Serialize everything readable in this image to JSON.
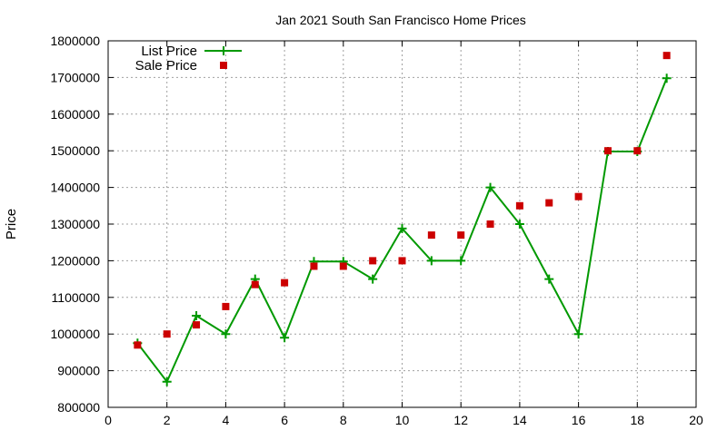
{
  "chart_data": {
    "type": "line",
    "title": "Jan 2021 South San Francisco Home Prices",
    "xlabel": "",
    "ylabel": "Price",
    "xlim": [
      0,
      20
    ],
    "ylim": [
      800000,
      1800000
    ],
    "x_ticks": [
      "0",
      "2",
      "4",
      "6",
      "8",
      "10",
      "12",
      "14",
      "16",
      "18",
      "20"
    ],
    "y_ticks": [
      "800000",
      "900000",
      "1000000",
      "1100000",
      "1200000",
      "1300000",
      "1400000",
      "1500000",
      "1600000",
      "1700000",
      "1800000"
    ],
    "grid": true,
    "legend_position": "top-left",
    "series": [
      {
        "name": "List Price",
        "style": "lines+points",
        "marker": "plus",
        "color": "#009900",
        "x": [
          1,
          2,
          3,
          4,
          5,
          6,
          7,
          8,
          9,
          10,
          11,
          12,
          13,
          14,
          15,
          16,
          17,
          18,
          19
        ],
        "values": [
          975000,
          870000,
          1050000,
          1000000,
          1150000,
          990000,
          1198000,
          1198000,
          1150000,
          1288000,
          1200000,
          1200000,
          1400000,
          1300000,
          1150000,
          1000000,
          1498000,
          1498000,
          1698000
        ]
      },
      {
        "name": "Sale Price",
        "style": "points",
        "marker": "square",
        "color": "#cc0000",
        "x": [
          1,
          2,
          3,
          4,
          5,
          6,
          7,
          8,
          9,
          10,
          11,
          12,
          13,
          14,
          15,
          16,
          17,
          18,
          19
        ],
        "values": [
          970000,
          1000000,
          1025000,
          1075000,
          1135000,
          1140000,
          1185000,
          1185000,
          1200000,
          1200000,
          1270000,
          1270000,
          1300000,
          1350000,
          1358000,
          1375000,
          1500000,
          1500000,
          1760000
        ]
      }
    ]
  }
}
